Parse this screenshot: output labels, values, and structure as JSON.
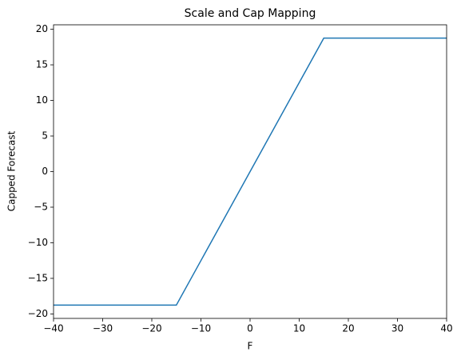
{
  "chart_data": {
    "type": "line",
    "title": "Scale and Cap Mapping",
    "x_label": "F",
    "y_label": "Capped Forecast",
    "x": [
      -40,
      -15,
      15,
      40
    ],
    "values": [
      -18.75,
      -18.75,
      18.75,
      18.75
    ],
    "color": "#1f77b4",
    "xlim": [
      -40,
      40
    ],
    "xticks": [
      {
        "value": -40,
        "label": "−40"
      },
      {
        "value": -30,
        "label": "−30"
      },
      {
        "value": -20,
        "label": "−20"
      },
      {
        "value": -10,
        "label": "−10"
      },
      0,
      10,
      20,
      30,
      40
    ],
    "ylim": [
      -20.625,
      20.625
    ],
    "yticks": [
      {
        "value": -20,
        "label": "−20"
      },
      {
        "value": -15,
        "label": "−15"
      },
      {
        "value": -10,
        "label": "−10"
      },
      {
        "value": -5,
        "label": "−5"
      },
      0,
      5,
      10,
      15,
      20
    ],
    "grid": false
  }
}
